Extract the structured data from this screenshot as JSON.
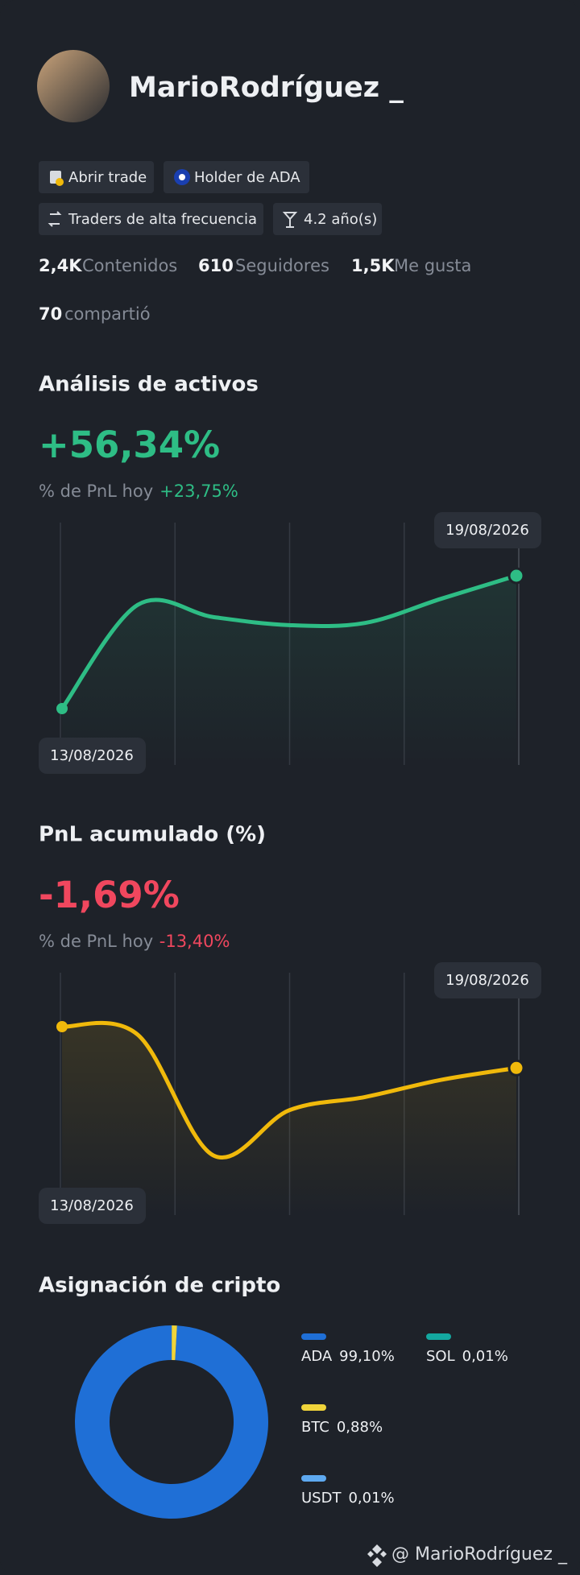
{
  "profile": {
    "name": "MarioRodríguez _",
    "tags": [
      "Abrir trade",
      "Holder de ADA",
      "Traders de alta frecuencia",
      "4.2 año(s)"
    ],
    "stats": [
      {
        "value": "2,4K",
        "label": "Contenidos"
      },
      {
        "value": "610",
        "label": "Seguidores"
      },
      {
        "value": "1,5K",
        "label": "Me gusta"
      },
      {
        "value": "70",
        "label": "compartió"
      }
    ]
  },
  "chart_data": [
    {
      "type": "line",
      "title": "Análisis de activos",
      "headline": "+56,34%",
      "subtitle": "% de PnL hoy",
      "subtitle_value": "+23,75%",
      "categories": [
        "13/08/2026",
        null,
        null,
        null,
        null,
        null,
        "19/08/2026"
      ],
      "values": [
        0,
        44,
        38.8,
        35.4,
        36.3,
        46.5,
        56.34
      ],
      "color": "#2ebd85"
    },
    {
      "type": "line",
      "title": "PnL acumulado (%)",
      "headline": "-1,69%",
      "subtitle": "% de PnL hoy",
      "subtitle_value": "-13,40%",
      "categories": [
        "13/08/2026",
        null,
        null,
        null,
        null,
        null,
        "19/08/2026"
      ],
      "values": [
        0,
        -0.33,
        -5.27,
        -3.42,
        -2.88,
        -2.18,
        -1.69
      ],
      "color": "#f0b90b"
    },
    {
      "type": "pie",
      "title": "Asignación de cripto",
      "categories": [
        "ADA",
        "BTC",
        "SOL",
        "USDT"
      ],
      "values": [
        99.1,
        0.88,
        0.01,
        0.01
      ],
      "value_labels": [
        "99,10%",
        "0,88%",
        "0,01%",
        "0,01%"
      ],
      "colors": [
        "#1f6fd6",
        "#f0d43a",
        "#14a8a0",
        "#5ea9f0"
      ]
    }
  ],
  "footer": "@ MarioRodríguez _"
}
